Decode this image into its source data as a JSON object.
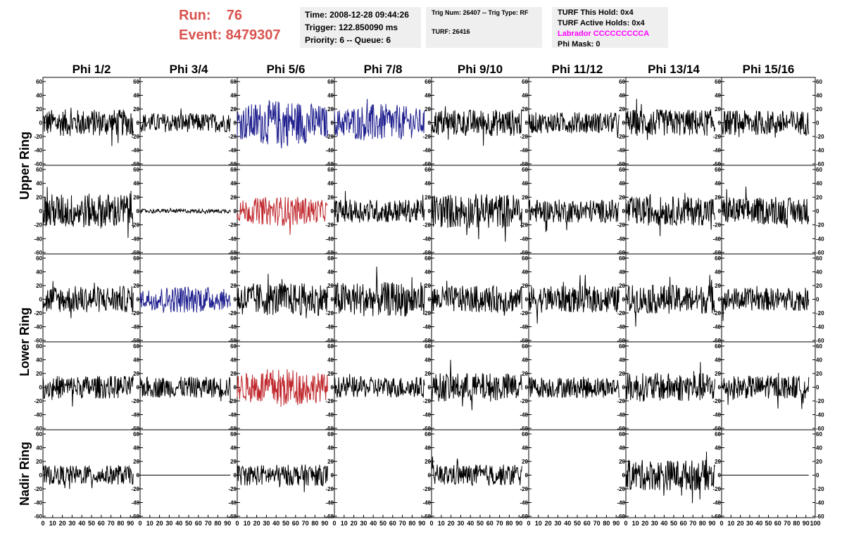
{
  "header": {
    "run_line": "Run:    76",
    "event_line": "Event: 8479307",
    "time_box": {
      "time": "Time: 2008-12-28 09:44:26",
      "trigger": "Trigger: 122.850090 ms",
      "priority": "Priority: 6 -- Queue: 6"
    },
    "trig_box": {
      "trig": "Trig Num: 26407 -- Trig Type: RF",
      "turf": "TURF: 26416"
    },
    "turf_box": {
      "this_hold": "TURF This Hold: 0x4",
      "active_holds": "TURF Active Holds: 0x4",
      "labrador": "Labrador CCCCCCCCCA",
      "phi_mask": "Phi Mask: 0"
    }
  },
  "colors": {
    "run_text": "#d9534f",
    "labrador_text": "#ff00ff",
    "trace_black": "#000000",
    "trace_blue": "#1f1f8f",
    "trace_red": "#c0282d",
    "info_bg": "#efefef"
  },
  "chart_data": {
    "type": "line",
    "column_labels": [
      "Phi 1/2",
      "Phi 3/4",
      "Phi 5/6",
      "Phi 7/8",
      "Phi 9/10",
      "Phi 11/12",
      "Phi 13/14",
      "Phi 15/16"
    ],
    "row_group_labels": [
      {
        "label": "Upper Ring",
        "rows": [
          0,
          1
        ]
      },
      {
        "label": "Lower Ring",
        "rows": [
          2,
          3
        ]
      },
      {
        "label": "Nadir Ring",
        "rows": [
          4
        ]
      }
    ],
    "xlim": [
      0,
      100
    ],
    "ylim": [
      -60,
      60
    ],
    "y_ticks": [
      -60,
      -40,
      -20,
      0,
      20,
      40,
      60
    ],
    "x_ticks": [
      0,
      10,
      20,
      30,
      40,
      50,
      60,
      70,
      80,
      90,
      100
    ],
    "x_range_shown": [
      0,
      93
    ],
    "panels": [
      [
        {
          "color": "black",
          "amp": 14
        },
        {
          "color": "black",
          "amp": 10
        },
        {
          "color": "blue",
          "amp": 22
        },
        {
          "color": "blue",
          "amp": 18
        },
        {
          "color": "black",
          "amp": 14
        },
        {
          "color": "black",
          "amp": 11
        },
        {
          "color": "black",
          "amp": 14
        },
        {
          "color": "black",
          "amp": 13
        }
      ],
      [
        {
          "color": "black",
          "amp": 18
        },
        {
          "color": "black",
          "amp": 2
        },
        {
          "color": "red",
          "amp": 14
        },
        {
          "color": "black",
          "amp": 12
        },
        {
          "color": "black",
          "amp": 18
        },
        {
          "color": "black",
          "amp": 12
        },
        {
          "color": "black",
          "amp": 15
        },
        {
          "color": "black",
          "amp": 14
        }
      ],
      [
        {
          "color": "black",
          "amp": 14
        },
        {
          "color": "blue",
          "amp": 13
        },
        {
          "color": "black",
          "amp": 17
        },
        {
          "color": "black",
          "amp": 18
        },
        {
          "color": "black",
          "amp": 14
        },
        {
          "color": "black",
          "amp": 14
        },
        {
          "color": "black",
          "amp": 15
        },
        {
          "color": "black",
          "amp": 12
        }
      ],
      [
        {
          "color": "black",
          "amp": 12
        },
        {
          "color": "black",
          "amp": 11
        },
        {
          "color": "red",
          "amp": 18
        },
        {
          "color": "black",
          "amp": 11
        },
        {
          "color": "black",
          "amp": 15
        },
        {
          "color": "black",
          "amp": 11
        },
        {
          "color": "black",
          "amp": 15
        },
        {
          "color": "black",
          "amp": 12
        }
      ],
      [
        {
          "color": "black",
          "amp": 10
        },
        {
          "color": "black",
          "amp": 0
        },
        {
          "color": "black",
          "amp": 11
        },
        {
          "color": "none",
          "amp": 0
        },
        {
          "color": "black",
          "amp": 11
        },
        {
          "color": "none",
          "amp": 0
        },
        {
          "color": "black",
          "amp": 16
        },
        {
          "color": "black",
          "amp": 0
        }
      ]
    ]
  }
}
